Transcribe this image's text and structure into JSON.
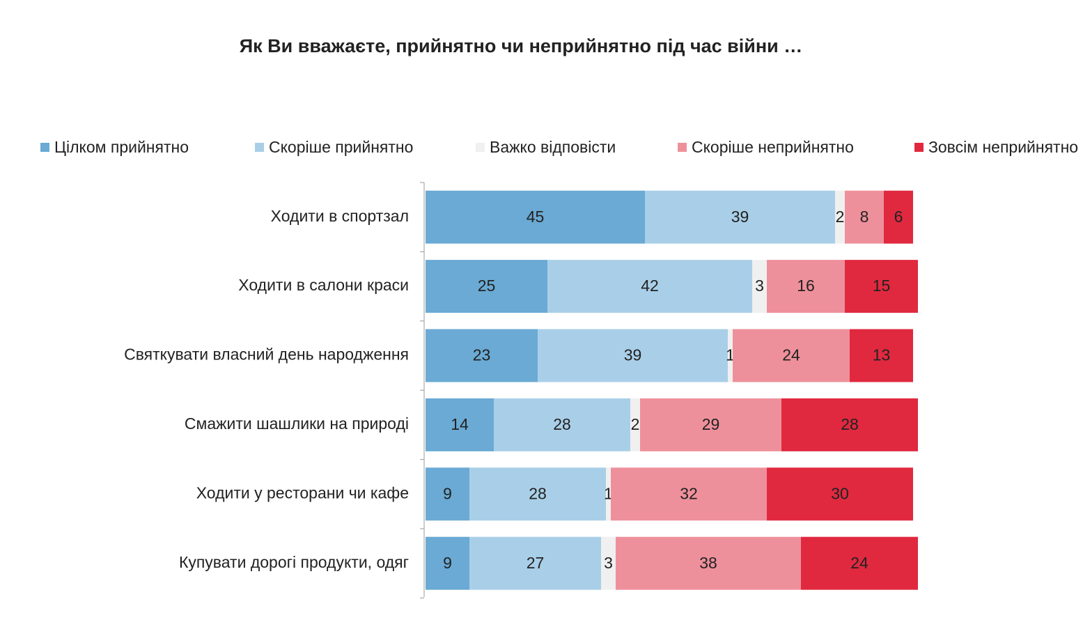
{
  "chart_data": {
    "type": "bar",
    "orientation": "horizontal",
    "stacked": true,
    "title": "Як Ви вважаєте, прийнятно чи неприйнятно під час війни …",
    "categories": [
      "Ходити в спортзал",
      "Ходити в салони краси",
      "Святкувати власний день народження",
      "Смажити шашлики на природі",
      "Ходити у ресторани чи кафе",
      "Купувати дорогі продукти, одяг"
    ],
    "series": [
      {
        "name": "Цілком прийнятно",
        "color": "#6aaad4",
        "values": [
          45,
          25,
          23,
          14,
          9,
          9
        ]
      },
      {
        "name": "Скоріше прийнятно",
        "color": "#a9cfe8",
        "values": [
          39,
          42,
          39,
          28,
          28,
          27
        ]
      },
      {
        "name": "Важко відповісти",
        "color": "#f0f0f0",
        "values": [
          2,
          3,
          1,
          2,
          1,
          3
        ]
      },
      {
        "name": "Скоріше неприйнятно",
        "color": "#ee909b",
        "values": [
          8,
          16,
          24,
          29,
          32,
          38
        ]
      },
      {
        "name": "Зовсім неприйнятно",
        "color": "#e0293f",
        "values": [
          6,
          15,
          13,
          28,
          30,
          24
        ]
      }
    ],
    "legend": "top"
  }
}
